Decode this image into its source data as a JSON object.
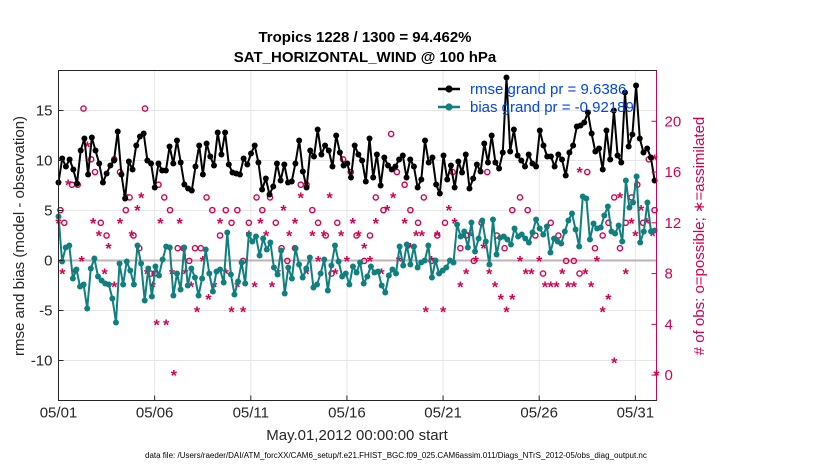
{
  "colors": {
    "rmse": "#000000",
    "bias": "#0f7f7f",
    "obs": "#d4004f",
    "zero": "#c0b0b8",
    "legend_text": "#0046e6"
  },
  "chart_data": {
    "type": "line",
    "title_line1": "Tropics 1228 / 1300 = 94.462%",
    "title_line2": "SAT_HORIZONTAL_WIND @ 100 hPa",
    "xlabel": "May.01,2012 00:00:00 start",
    "ylabel": "rmse and bias (model - observation)",
    "ylabel_right": "# of obs: o=possible; ∗=assimilated",
    "footer": "data file: /Users/raeder/DAI/ATM_forcXX/CAM6_setup/f.e21.FHIST_BGC.f09_025.CAM6assim.011/Diags_NTrS_2012-05/obs_diag_output.nc",
    "x_ticks": [
      "05/01",
      "05/06",
      "05/11",
      "05/16",
      "05/21",
      "05/26",
      "05/31"
    ],
    "x_tick_days": [
      0,
      5,
      10,
      15,
      20,
      25,
      30
    ],
    "xlim": [
      0,
      31.1
    ],
    "ylim": [
      -14,
      19
    ],
    "y_ticks": [
      -10,
      -5,
      0,
      5,
      10,
      15
    ],
    "ylim_right": [
      -2,
      24
    ],
    "y_ticks_right": [
      0,
      4,
      8,
      12,
      16,
      20
    ],
    "legend": {
      "position": "top-right",
      "entries": [
        "rmse grand pr = 9.6386",
        "bias grand pr = -0.92189"
      ]
    },
    "series": [
      {
        "name": "rmse grand pr = 9.6386",
        "marker": "filled-circle",
        "values": [
          7.8,
          10.2,
          9.4,
          10.1,
          9.1,
          7.7,
          11.0,
          12.2,
          8.6,
          12.3,
          11.0,
          9.7,
          7.8,
          8.7,
          9.5,
          10.0,
          12.9,
          8.6,
          6.2,
          9.9,
          9.1,
          11.5,
          12.4,
          12.7,
          10.0,
          9.7,
          7.3,
          9.7,
          9.0,
          9.0,
          11.4,
          9.7,
          12.0,
          9.8,
          7.6,
          7.2,
          7.0,
          9.4,
          11.5,
          8.6,
          11.7,
          10.4,
          9.5,
          12.8,
          10.6,
          12.8,
          9.6,
          8.8,
          8.7,
          8.6,
          10.2,
          9.6,
          10.7,
          11.5,
          9.8,
          7.1,
          8.2,
          6.6,
          7.4,
          9.7,
          8.0,
          9.6,
          7.8,
          7.9,
          9.7,
          12.0,
          8.9,
          7.3,
          11.0,
          10.4,
          13.1,
          10.6,
          11.5,
          11.0,
          9.4,
          12.5,
          10.8,
          9.5,
          9.7,
          8.3,
          11.5,
          10.6,
          10.0,
          7.9,
          12.2,
          8.3,
          10.6,
          7.5,
          10.3,
          9.5,
          9.1,
          9.4,
          10.1,
          10.5,
          8.3,
          10.1,
          9.4,
          7.3,
          8.1,
          12.0,
          9.8,
          10.3,
          7.6,
          6.7,
          10.5,
          8.1,
          9.5,
          7.3,
          9.9,
          8.8,
          10.6,
          7.2,
          8.2,
          9.6,
          8.9,
          11.7,
          9.8,
          12.5,
          9.8,
          9.2,
          10.8,
          18.3,
          10.9,
          13.1,
          10.5,
          10.0,
          9.4,
          10.6,
          9.7,
          9.4,
          13.0,
          11.5,
          10.4,
          10.4,
          9.4,
          10.6,
          10.1,
          8.5,
          10.8,
          11.5,
          13.4,
          13.5,
          13.8,
          14.8,
          12.7,
          10.9,
          11.2,
          9.1,
          13.0,
          10.1,
          15.0,
          10.5,
          9.8,
          16.8,
          11.4,
          12.6,
          17.5,
          12.2,
          10.8,
          11.2,
          10.3,
          8.0
        ]
      },
      {
        "name": "bias grand pr = -0.92189",
        "marker": "filled-circle",
        "values": [
          4.4,
          -0.1,
          1.3,
          1.5,
          -1.8,
          -0.9,
          -2.6,
          -2.4,
          -4.8,
          -0.8,
          0.2,
          -1.6,
          -2.0,
          -2.3,
          -2.4,
          -3.8,
          -6.2,
          -0.3,
          -2.4,
          -0.1,
          -1.0,
          -2.4,
          1.5,
          -0.3,
          -4.0,
          -0.8,
          -3.6,
          -0.6,
          -1.5,
          0.1,
          1.4,
          1.3,
          -3.5,
          -1.3,
          -2.9,
          1.3,
          -2.5,
          -0.8,
          -1.7,
          -3.5,
          -1.8,
          1.1,
          -1.3,
          -3.1,
          -1.1,
          -0.9,
          -2.2,
          2.8,
          -1.4,
          -3.4,
          -2.1,
          -0.2,
          -2.3,
          2.6,
          1.9,
          2.4,
          0.5,
          2.2,
          1.1,
          1.8,
          -0.7,
          -1.4,
          1.0,
          -3.3,
          -0.7,
          -1.8,
          1.2,
          -0.4,
          -1.7,
          -0.8,
          0.3,
          -2.7,
          -2.4,
          -1.3,
          0.1,
          -3.0,
          -0.5,
          1.5,
          -0.1,
          -1.6,
          -1.3,
          -2.4,
          -0.6,
          -1.2,
          -0.2,
          -2.3,
          -1.6,
          -0.6,
          -1.2,
          -1.1,
          -2.5,
          -3.2,
          -1.5,
          -0.9,
          -1.3,
          1.4,
          -0.5,
          1.6,
          -0.4,
          1.4,
          -0.7,
          -0.2,
          0.0,
          1.5,
          -1.7,
          0.0,
          -1.3,
          -1.0,
          -0.7,
          0.0,
          -0.2,
          3.6,
          2.4,
          2.9,
          1.3,
          3.8,
          0.9,
          2.2,
          4.0,
          1.9,
          -0.4,
          4.1,
          0.6,
          2.3,
          2.4,
          2.1,
          1.6,
          3.2,
          2.4,
          2.6,
          2.2,
          1.8,
          2.8,
          4.1,
          3.2,
          2.6,
          3.4,
          0.8,
          2.2,
          1.9,
          1.7,
          2.9,
          4.0,
          4.7,
          3.1,
          1.4,
          6.4,
          6.2,
          2.1,
          3.7,
          3.2,
          3.3,
          4.5,
          5.4,
          2.9,
          2.7,
          3.5,
          1.9,
          8.0,
          5.3,
          5.8,
          8.4,
          1.8,
          2.9,
          5.8,
          2.9,
          3.0
        ]
      },
      {
        "name": "obs possible",
        "marker": "o",
        "y_axis": "right",
        "points": [
          [
            0.1,
            13
          ],
          [
            0.3,
            12
          ],
          [
            0.7,
            15
          ],
          [
            1.0,
            15
          ],
          [
            1.3,
            21
          ],
          [
            1.7,
            17
          ],
          [
            1.9,
            16
          ],
          [
            2.2,
            12
          ],
          [
            2.5,
            11
          ],
          [
            2.9,
            17
          ],
          [
            3.2,
            16
          ],
          [
            3.5,
            13
          ],
          [
            3.7,
            14
          ],
          [
            3.9,
            11
          ],
          [
            4.2,
            10
          ],
          [
            4.5,
            21
          ],
          [
            4.8,
            8
          ],
          [
            5.0,
            8
          ],
          [
            5.2,
            15
          ],
          [
            5.5,
            14
          ],
          [
            5.8,
            13
          ],
          [
            6.2,
            10
          ],
          [
            6.5,
            10
          ],
          [
            6.8,
            9
          ],
          [
            7.1,
            10
          ],
          [
            7.4,
            10
          ],
          [
            7.7,
            14
          ],
          [
            8.0,
            13
          ],
          [
            8.4,
            11
          ],
          [
            8.7,
            13
          ],
          [
            9.0,
            12
          ],
          [
            9.3,
            13
          ],
          [
            9.6,
            9
          ],
          [
            9.9,
            12
          ],
          [
            10.3,
            14
          ],
          [
            10.6,
            13
          ],
          [
            11.0,
            14
          ],
          [
            11.3,
            12
          ],
          [
            11.6,
            10
          ],
          [
            11.9,
            9
          ],
          [
            12.3,
            10
          ],
          [
            12.6,
            15
          ],
          [
            12.9,
            15
          ],
          [
            13.2,
            13
          ],
          [
            13.5,
            12
          ],
          [
            13.9,
            11
          ],
          [
            14.2,
            8
          ],
          [
            14.5,
            12
          ],
          [
            14.8,
            17
          ],
          [
            15.2,
            16
          ],
          [
            15.5,
            11
          ],
          [
            15.9,
            9
          ],
          [
            16.2,
            11
          ],
          [
            16.5,
            14
          ],
          [
            16.9,
            13
          ],
          [
            17.3,
            19
          ],
          [
            17.6,
            16
          ],
          [
            18.0,
            15
          ],
          [
            18.3,
            13
          ],
          [
            18.7,
            12
          ],
          [
            19.0,
            14
          ],
          [
            19.4,
            9
          ],
          [
            19.7,
            11
          ],
          [
            20.1,
            12
          ],
          [
            20.5,
            16
          ],
          [
            20.9,
            10
          ],
          [
            21.2,
            11
          ],
          [
            21.6,
            9
          ],
          [
            22.0,
            12
          ],
          [
            22.3,
            16
          ],
          [
            22.8,
            11
          ],
          [
            23.2,
            10
          ],
          [
            23.6,
            13
          ],
          [
            24.0,
            14
          ],
          [
            24.4,
            13
          ],
          [
            24.8,
            11
          ],
          [
            25.2,
            8
          ],
          [
            25.6,
            12
          ],
          [
            26.0,
            11
          ],
          [
            26.4,
            9
          ],
          [
            26.8,
            9
          ],
          [
            27.1,
            8
          ],
          [
            27.5,
            16
          ],
          [
            27.9,
            10
          ],
          [
            28.3,
            11
          ],
          [
            28.6,
            12
          ],
          [
            28.9,
            14
          ],
          [
            29.2,
            10
          ],
          [
            29.5,
            12
          ],
          [
            29.8,
            14
          ],
          [
            30.1,
            15
          ],
          [
            30.4,
            12
          ],
          [
            30.7,
            17
          ],
          [
            31.0,
            13
          ]
        ]
      },
      {
        "name": "obs assimilated",
        "marker": "*",
        "y_axis": "right",
        "points": [
          [
            0.0,
            12
          ],
          [
            0.2,
            8
          ],
          [
            0.5,
            15
          ],
          [
            0.8,
            8
          ],
          [
            1.2,
            9
          ],
          [
            1.5,
            18
          ],
          [
            1.8,
            12
          ],
          [
            2.1,
            11
          ],
          [
            2.4,
            8
          ],
          [
            2.6,
            10
          ],
          [
            2.9,
            7
          ],
          [
            3.2,
            12
          ],
          [
            3.5,
            14
          ],
          [
            3.8,
            11
          ],
          [
            4.1,
            13
          ],
          [
            4.3,
            14
          ],
          [
            4.6,
            8
          ],
          [
            4.9,
            7
          ],
          [
            5.1,
            4
          ],
          [
            5.3,
            12
          ],
          [
            5.6,
            4
          ],
          [
            5.9,
            8
          ],
          [
            6.0,
            0
          ],
          [
            6.3,
            12
          ],
          [
            6.6,
            8
          ],
          [
            6.9,
            7
          ],
          [
            7.2,
            5
          ],
          [
            7.5,
            9
          ],
          [
            7.8,
            6
          ],
          [
            8.1,
            7
          ],
          [
            8.4,
            12
          ],
          [
            8.7,
            8
          ],
          [
            9.0,
            5
          ],
          [
            9.3,
            7
          ],
          [
            9.6,
            5
          ],
          [
            9.9,
            11
          ],
          [
            10.2,
            7
          ],
          [
            10.5,
            12
          ],
          [
            10.8,
            11
          ],
          [
            11.1,
            7
          ],
          [
            11.4,
            8
          ],
          [
            11.7,
            13
          ],
          [
            12.0,
            11
          ],
          [
            12.3,
            12
          ],
          [
            12.6,
            14
          ],
          [
            12.9,
            8
          ],
          [
            13.2,
            11
          ],
          [
            13.5,
            9
          ],
          [
            13.8,
            11
          ],
          [
            14.1,
            14
          ],
          [
            14.4,
            8
          ],
          [
            14.7,
            11
          ],
          [
            15.0,
            9
          ],
          [
            15.3,
            12
          ],
          [
            15.6,
            11
          ],
          [
            15.9,
            10
          ],
          [
            16.2,
            9
          ],
          [
            16.5,
            12
          ],
          [
            16.8,
            8
          ],
          [
            17.1,
            13
          ],
          [
            17.4,
            14
          ],
          [
            17.7,
            9
          ],
          [
            18.0,
            12
          ],
          [
            18.3,
            10
          ],
          [
            18.6,
            11
          ],
          [
            18.9,
            11
          ],
          [
            19.1,
            5
          ],
          [
            19.4,
            9
          ],
          [
            19.7,
            11
          ],
          [
            20.0,
            5
          ],
          [
            20.3,
            13
          ],
          [
            20.6,
            12
          ],
          [
            20.9,
            7
          ],
          [
            21.2,
            8
          ],
          [
            21.4,
            11
          ],
          [
            21.7,
            9
          ],
          [
            22.1,
            10
          ],
          [
            22.4,
            8
          ],
          [
            22.7,
            7
          ],
          [
            23.0,
            6
          ],
          [
            23.3,
            5
          ],
          [
            23.6,
            6
          ],
          [
            24.0,
            9
          ],
          [
            24.3,
            8
          ],
          [
            24.6,
            8
          ],
          [
            25.0,
            9
          ],
          [
            25.3,
            7
          ],
          [
            25.6,
            7
          ],
          [
            25.9,
            7
          ],
          [
            26.2,
            8
          ],
          [
            26.5,
            7
          ],
          [
            26.8,
            7
          ],
          [
            27.1,
            16
          ],
          [
            27.4,
            8
          ],
          [
            27.7,
            7
          ],
          [
            28.0,
            9
          ],
          [
            28.3,
            5
          ],
          [
            28.6,
            6
          ],
          [
            28.9,
            1
          ],
          [
            29.2,
            14
          ],
          [
            29.5,
            8
          ],
          [
            29.8,
            12
          ],
          [
            30.0,
            11
          ],
          [
            30.3,
            13
          ],
          [
            30.6,
            12
          ],
          [
            30.9,
            11
          ],
          [
            31.1,
            0
          ],
          [
            31.0,
            17
          ]
        ]
      }
    ]
  }
}
